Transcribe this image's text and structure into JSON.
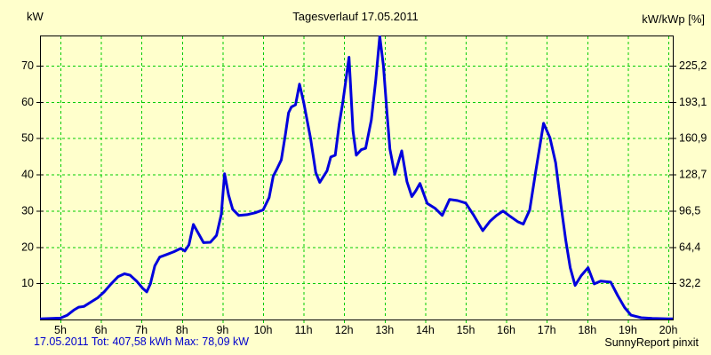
{
  "header": {
    "left_unit": "kW",
    "title": "Tagesverlauf 17.05.2011",
    "right_unit": "kW/kWp [%]"
  },
  "footer": {
    "summary": "17.05.2011 Tot: 407,58 kWh Max: 78,09 kW",
    "brand": "SunnyReport pinxit"
  },
  "colors": {
    "background": "#ffffcc",
    "grid": "#00cc00",
    "line": "#0000dd",
    "axis": "#000000",
    "footer_text": "#0000cc",
    "text": "#000000"
  },
  "chart_data": {
    "type": "line",
    "title": "Tagesverlauf 17.05.2011",
    "xlabel": "",
    "ylabel_left": "kW",
    "ylabel_right": "kW/kWp [%]",
    "grid": true,
    "legend": false,
    "xlim": [
      4.45,
      20.25
    ],
    "ylim": [
      0,
      78.3
    ],
    "x_tick_values": [
      5,
      6,
      7,
      8,
      9,
      10,
      11,
      12,
      13,
      14,
      15,
      16,
      17,
      18,
      19,
      20
    ],
    "x_tick_labels": [
      "5h",
      "6h",
      "7h",
      "8h",
      "9h",
      "10h",
      "11h",
      "12h",
      "13h",
      "14h",
      "15h",
      "16h",
      "17h",
      "18h",
      "19h",
      "20h"
    ],
    "y_left_ticks": [
      10,
      20,
      30,
      40,
      50,
      60,
      70
    ],
    "y_right_tick_labels": [
      "32,2",
      "64,4",
      "96,5",
      "128,7",
      "160,9",
      "193,1",
      "225,2"
    ],
    "date": "17.05.2011",
    "total_kwh": "407,58",
    "max_kw": "78,09",
    "series": [
      {
        "name": "kW",
        "x": [
          4.5,
          4.8,
          5.0,
          5.17,
          5.33,
          5.45,
          5.58,
          5.75,
          5.92,
          6.08,
          6.25,
          6.42,
          6.58,
          6.72,
          6.88,
          7.03,
          7.13,
          7.22,
          7.33,
          7.45,
          7.62,
          7.8,
          7.97,
          8.07,
          8.17,
          8.28,
          8.42,
          8.53,
          8.7,
          8.85,
          8.97,
          9.05,
          9.15,
          9.25,
          9.4,
          9.6,
          9.8,
          10.0,
          10.15,
          10.25,
          10.33,
          10.45,
          10.55,
          10.63,
          10.7,
          10.8,
          10.9,
          11.0,
          11.17,
          11.3,
          11.4,
          11.58,
          11.67,
          11.78,
          11.88,
          11.97,
          12.12,
          12.22,
          12.3,
          12.42,
          12.53,
          12.67,
          12.78,
          12.88,
          12.97,
          13.05,
          13.13,
          13.25,
          13.42,
          13.55,
          13.67,
          13.77,
          13.87,
          14.05,
          14.25,
          14.42,
          14.6,
          14.8,
          15.0,
          15.2,
          15.42,
          15.6,
          15.75,
          15.92,
          16.1,
          16.28,
          16.42,
          16.58,
          16.73,
          16.92,
          17.08,
          17.22,
          17.35,
          17.47,
          17.58,
          17.7,
          17.85,
          18.02,
          18.17,
          18.33,
          18.58,
          18.75,
          18.92,
          19.08,
          19.33,
          19.6,
          20.0,
          20.2
        ],
        "y": [
          0.2,
          0.3,
          0.4,
          1.2,
          2.6,
          3.4,
          3.6,
          4.8,
          6.0,
          7.6,
          9.8,
          11.8,
          12.6,
          12.2,
          10.6,
          8.6,
          7.6,
          9.8,
          14.8,
          17.2,
          17.9,
          18.7,
          19.6,
          18.9,
          20.6,
          26.2,
          23.4,
          21.2,
          21.3,
          23.2,
          29.0,
          40.2,
          34.3,
          30.4,
          28.7,
          28.9,
          29.4,
          30.2,
          33.6,
          39.5,
          41.2,
          44.0,
          51.0,
          57.0,
          58.6,
          59.2,
          64.9,
          60.0,
          50.0,
          40.5,
          37.8,
          41.0,
          44.8,
          45.3,
          53.9,
          60.0,
          72.3,
          52.0,
          45.3,
          46.8,
          47.2,
          55.0,
          66.0,
          78.1,
          70.0,
          58.0,
          47.0,
          40.0,
          46.5,
          38.0,
          33.9,
          35.5,
          37.5,
          32.0,
          30.6,
          28.7,
          33.1,
          32.8,
          32.1,
          28.7,
          24.5,
          27.1,
          28.6,
          29.9,
          28.4,
          27.0,
          26.3,
          30.2,
          41.0,
          54.1,
          50.1,
          43.2,
          31.5,
          21.8,
          14.3,
          9.4,
          12.1,
          14.3,
          9.8,
          10.6,
          10.3,
          6.6,
          3.3,
          1.2,
          0.5,
          0.3,
          0.2,
          0.2
        ]
      }
    ]
  }
}
